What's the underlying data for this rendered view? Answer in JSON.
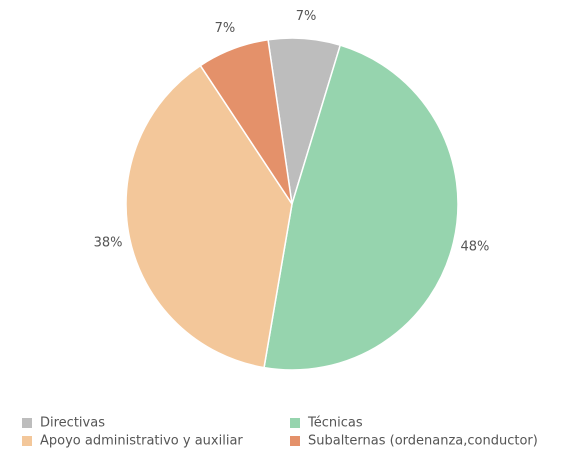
{
  "chart_data": {
    "type": "pie",
    "categories": [
      "Directivas",
      "Técnicas",
      "Apoyo administrativo y auxiliar",
      "Subalternas (ordenanza,conductor)"
    ],
    "values": [
      7,
      48,
      38,
      7
    ],
    "value_labels": [
      "7%",
      "48%",
      "38%",
      "7%"
    ],
    "colors": [
      "#bdbdbd",
      "#96d4ae",
      "#f3c79a",
      "#e4916a"
    ],
    "legend": "bottom"
  }
}
